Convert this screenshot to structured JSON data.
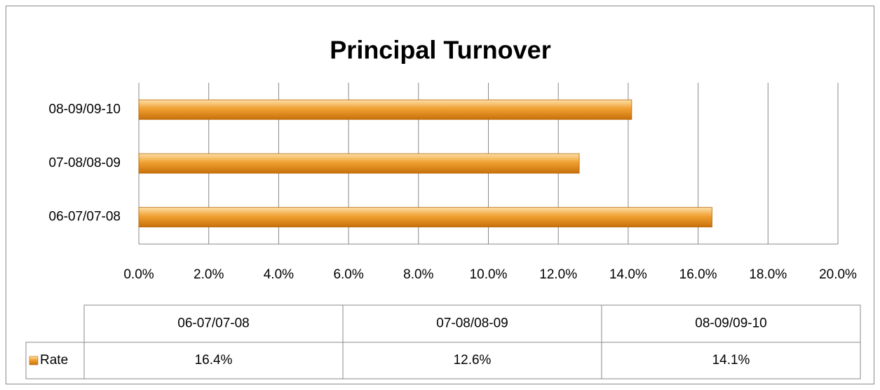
{
  "chart_data": {
    "type": "bar",
    "orientation": "horizontal",
    "title": "Principal Turnover",
    "categories": [
      "06-07/07-08",
      "07-08/08-09",
      "08-09/09-10"
    ],
    "series": [
      {
        "name": "Rate",
        "color": "#f0a030",
        "values": [
          16.4,
          12.6,
          14.1
        ],
        "value_labels": [
          "16.4%",
          "12.6%",
          "14.1%"
        ]
      }
    ],
    "xlim": [
      0,
      20
    ],
    "xticks": [
      {
        "value": 0,
        "label": "0.0%"
      },
      {
        "value": 2,
        "label": "2.0%"
      },
      {
        "value": 4,
        "label": "4.0%"
      },
      {
        "value": 6,
        "label": "6.0%"
      },
      {
        "value": 8,
        "label": "8.0%"
      },
      {
        "value": 10,
        "label": "10.0%"
      },
      {
        "value": 12,
        "label": "12.0%"
      },
      {
        "value": 14,
        "label": "14.0%"
      },
      {
        "value": 16,
        "label": "16.0%"
      },
      {
        "value": 18,
        "label": "18.0%"
      },
      {
        "value": 20,
        "label": "20.0%"
      }
    ],
    "grid": true,
    "data_table": true
  }
}
